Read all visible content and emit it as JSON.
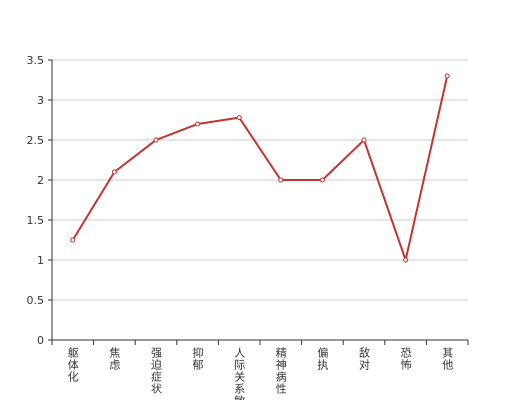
{
  "chart_data": {
    "type": "line",
    "categories": [
      "躯体化",
      "焦虑",
      "强迫症状",
      "抑郁",
      "人际关系敏感",
      "精神病性",
      "偏执",
      "敌对",
      "恐怖",
      "其他"
    ],
    "series": [
      {
        "color": "#c23531",
        "values": [
          1.25,
          2.1,
          2.5,
          2.7,
          2.78,
          2.0,
          2.0,
          2.5,
          1.0,
          3.3
        ]
      }
    ],
    "ylim": [
      0,
      3.5
    ],
    "yticks": [
      0,
      0.5,
      1,
      1.5,
      2,
      2.5,
      3,
      3.5
    ],
    "grid": true
  }
}
